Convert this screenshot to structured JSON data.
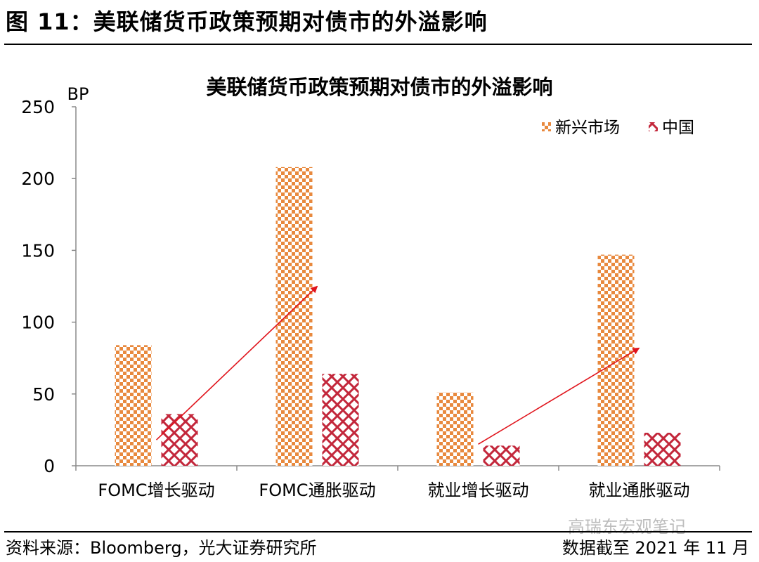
{
  "figure": {
    "heading": "图 11：美联储货币政策预期对债市的外溢影响",
    "source": "资料来源：Bloomberg，光大证券研究所",
    "date_note": "数据截至 2021 年 11 月",
    "watermark": "高瑞东宏观笔记"
  },
  "chart_data": {
    "type": "bar",
    "title": "美联储货币政策预期对债市的外溢影响",
    "ylabel": "BP",
    "xlabel": "",
    "ylim": [
      0,
      250
    ],
    "yticks": [
      0,
      50,
      100,
      150,
      200,
      250
    ],
    "categories": [
      "FOMC增长驱动",
      "FOMC通胀驱动",
      "就业增长驱动",
      "就业通胀驱动"
    ],
    "series": [
      {
        "name": "新兴市场",
        "values": [
          84,
          208,
          51,
          147
        ],
        "color": "#e8893e",
        "pattern": "checker"
      },
      {
        "name": "中国",
        "values": [
          36,
          64,
          14,
          23
        ],
        "color": "#c3273b",
        "pattern": "lattice"
      }
    ],
    "legend": "top-right",
    "grid": false,
    "annotations": [
      {
        "type": "arrow",
        "color": "#e0141c",
        "from": [
          "FOMC增长驱动",
          18
        ],
        "to": [
          "FOMC通胀驱动",
          125
        ]
      },
      {
        "type": "arrow",
        "color": "#e0141c",
        "from": [
          "就业增长驱动",
          15
        ],
        "to": [
          "就业通胀驱动",
          82
        ]
      }
    ]
  }
}
